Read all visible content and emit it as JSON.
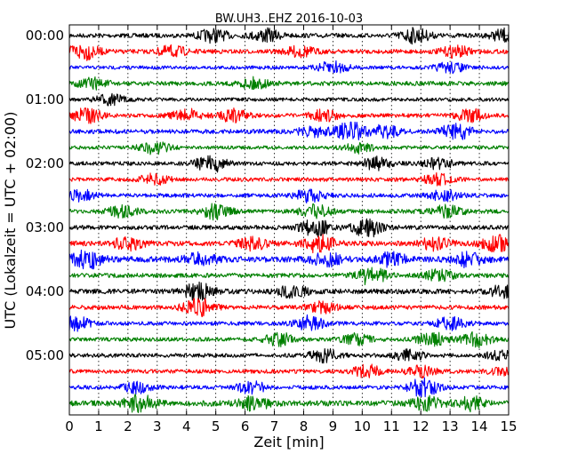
{
  "chart_data": {
    "type": "line",
    "title": "BW.UH3..EHZ 2016-10-03",
    "xlabel": "Zeit  [min]",
    "ylabel": "UTC (Lokalzeit = UTC + 02:00)",
    "xlim": [
      0,
      15
    ],
    "x_ticks": [
      0,
      1,
      2,
      3,
      4,
      5,
      6,
      7,
      8,
      9,
      10,
      11,
      12,
      13,
      14,
      15
    ],
    "x_tick_labels": [
      "0",
      "1",
      "2",
      "3",
      "4",
      "5",
      "6",
      "7",
      "8",
      "9",
      "10",
      "11",
      "12",
      "13",
      "14",
      "15"
    ],
    "y_tick_labels": [
      {
        "row": 0,
        "label": "00:00"
      },
      {
        "row": 4,
        "label": "01:00"
      },
      {
        "row": 8,
        "label": "02:00"
      },
      {
        "row": 12,
        "label": "03:00"
      },
      {
        "row": 16,
        "label": "04:00"
      },
      {
        "row": 20,
        "label": "05:00"
      }
    ],
    "grid": {
      "x": true,
      "y": false,
      "style": "dotted"
    },
    "row_colors": [
      "#000000",
      "#ff0000",
      "#0000ff",
      "#008000"
    ],
    "rows": [
      {
        "start": "00:00",
        "bursts": [
          [
            4.9,
            0.6
          ],
          [
            6.7,
            0.6
          ],
          [
            11.8,
            0.7
          ],
          [
            14.9,
            0.6
          ]
        ],
        "base": 0.22
      },
      {
        "start": "00:15",
        "bursts": [
          [
            0.5,
            0.8
          ],
          [
            3.5,
            0.5
          ],
          [
            7.9,
            0.5
          ],
          [
            13.2,
            0.5
          ]
        ],
        "base": 0.22
      },
      {
        "start": "00:30",
        "bursts": [
          [
            9.0,
            0.6
          ],
          [
            13.0,
            0.5
          ]
        ],
        "base": 0.18
      },
      {
        "start": "00:45",
        "bursts": [
          [
            0.8,
            0.5
          ],
          [
            6.3,
            0.5
          ]
        ],
        "base": 0.22
      },
      {
        "start": "01:00",
        "bursts": [
          [
            1.4,
            0.5
          ]
        ],
        "base": 0.18
      },
      {
        "start": "01:15",
        "bursts": [
          [
            0.6,
            0.7
          ],
          [
            4.0,
            0.6
          ],
          [
            5.6,
            0.6
          ],
          [
            8.7,
            0.5
          ],
          [
            13.7,
            0.6
          ]
        ],
        "base": 0.2
      },
      {
        "start": "01:30",
        "bursts": [
          [
            8.3,
            0.5
          ],
          [
            9.6,
            0.9
          ],
          [
            10.8,
            0.6
          ],
          [
            13.2,
            0.8
          ]
        ],
        "base": 0.22
      },
      {
        "start": "01:45",
        "bursts": [
          [
            2.9,
            0.6
          ],
          [
            9.9,
            0.5
          ]
        ],
        "base": 0.18
      },
      {
        "start": "02:00",
        "bursts": [
          [
            4.8,
            0.9
          ],
          [
            10.5,
            0.6
          ],
          [
            12.6,
            0.5
          ]
        ],
        "base": 0.2
      },
      {
        "start": "02:15",
        "bursts": [
          [
            2.9,
            0.5
          ],
          [
            12.6,
            0.5
          ]
        ],
        "base": 0.2
      },
      {
        "start": "02:30",
        "bursts": [
          [
            0.4,
            0.5
          ],
          [
            8.2,
            0.6
          ],
          [
            12.8,
            0.5
          ]
        ],
        "base": 0.2
      },
      {
        "start": "02:45",
        "bursts": [
          [
            1.8,
            0.5
          ],
          [
            5.0,
            0.7
          ],
          [
            8.4,
            0.6
          ],
          [
            12.9,
            0.6
          ]
        ],
        "base": 0.22
      },
      {
        "start": "03:00",
        "bursts": [
          [
            8.4,
            0.8
          ],
          [
            10.2,
            1.0
          ]
        ],
        "base": 0.22
      },
      {
        "start": "03:15",
        "bursts": [
          [
            2.0,
            0.6
          ],
          [
            6.3,
            0.6
          ],
          [
            8.5,
            0.9
          ],
          [
            12.5,
            0.6
          ],
          [
            14.6,
            0.8
          ]
        ],
        "base": 0.25
      },
      {
        "start": "03:30",
        "bursts": [
          [
            0.6,
            0.9
          ],
          [
            4.5,
            0.6
          ],
          [
            8.8,
            0.6
          ],
          [
            11.0,
            0.6
          ],
          [
            13.6,
            0.6
          ]
        ],
        "base": 0.3
      },
      {
        "start": "03:45",
        "bursts": [
          [
            10.3,
            0.9
          ],
          [
            12.6,
            0.5
          ]
        ],
        "base": 0.22
      },
      {
        "start": "04:00",
        "bursts": [
          [
            4.4,
            0.8
          ],
          [
            7.6,
            0.6
          ],
          [
            14.8,
            0.5
          ]
        ],
        "base": 0.25
      },
      {
        "start": "04:15",
        "bursts": [
          [
            4.4,
            0.9
          ],
          [
            8.6,
            0.5
          ]
        ],
        "base": 0.22
      },
      {
        "start": "04:30",
        "bursts": [
          [
            0.2,
            0.7
          ],
          [
            8.2,
            0.7
          ],
          [
            13.0,
            0.6
          ]
        ],
        "base": 0.2
      },
      {
        "start": "04:45",
        "bursts": [
          [
            7.2,
            0.6
          ],
          [
            9.8,
            0.5
          ],
          [
            12.4,
            0.7
          ],
          [
            13.9,
            0.7
          ]
        ],
        "base": 0.2
      },
      {
        "start": "05:00",
        "bursts": [
          [
            8.7,
            0.6
          ],
          [
            11.6,
            0.5
          ],
          [
            14.7,
            0.4
          ]
        ],
        "base": 0.2
      },
      {
        "start": "05:15",
        "bursts": [
          [
            10.2,
            0.6
          ],
          [
            12.0,
            0.5
          ],
          [
            14.8,
            0.3
          ]
        ],
        "base": 0.2
      },
      {
        "start": "05:30",
        "bursts": [
          [
            2.3,
            0.5
          ],
          [
            6.2,
            0.6
          ],
          [
            12.1,
            0.9
          ]
        ],
        "base": 0.2
      },
      {
        "start": "05:45",
        "bursts": [
          [
            2.4,
            0.9
          ],
          [
            6.3,
            0.6
          ],
          [
            12.2,
            0.6
          ],
          [
            13.7,
            0.6
          ]
        ],
        "base": 0.28
      }
    ]
  }
}
